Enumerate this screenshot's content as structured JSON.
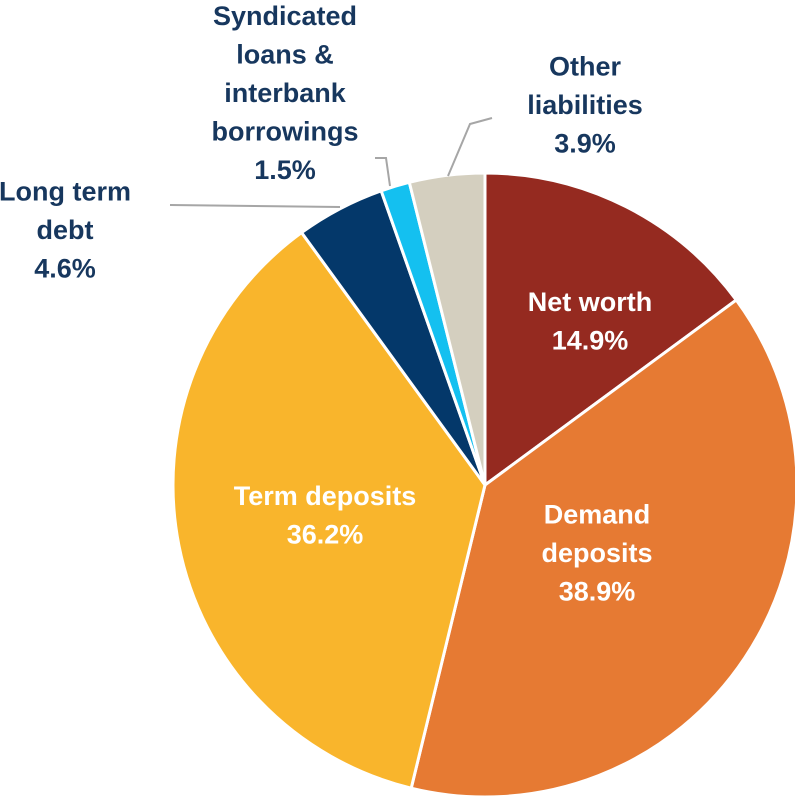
{
  "chart_data": {
    "type": "pie",
    "categories": [
      "Net worth",
      "Demand deposits",
      "Term deposits",
      "Long term debt",
      "Syndicated loans & interbank borrowings",
      "Other liabilities"
    ],
    "values": [
      14.9,
      38.9,
      36.2,
      4.6,
      1.5,
      3.9
    ],
    "value_labels": [
      "14.9%",
      "38.9%",
      "36.2%",
      "4.6%",
      "1.5%",
      "3.9%"
    ],
    "colors": [
      "#952a20",
      "#e67a33",
      "#f9b52c",
      "#04386a",
      "#14c0f0",
      "#d4cfbf"
    ]
  }
}
